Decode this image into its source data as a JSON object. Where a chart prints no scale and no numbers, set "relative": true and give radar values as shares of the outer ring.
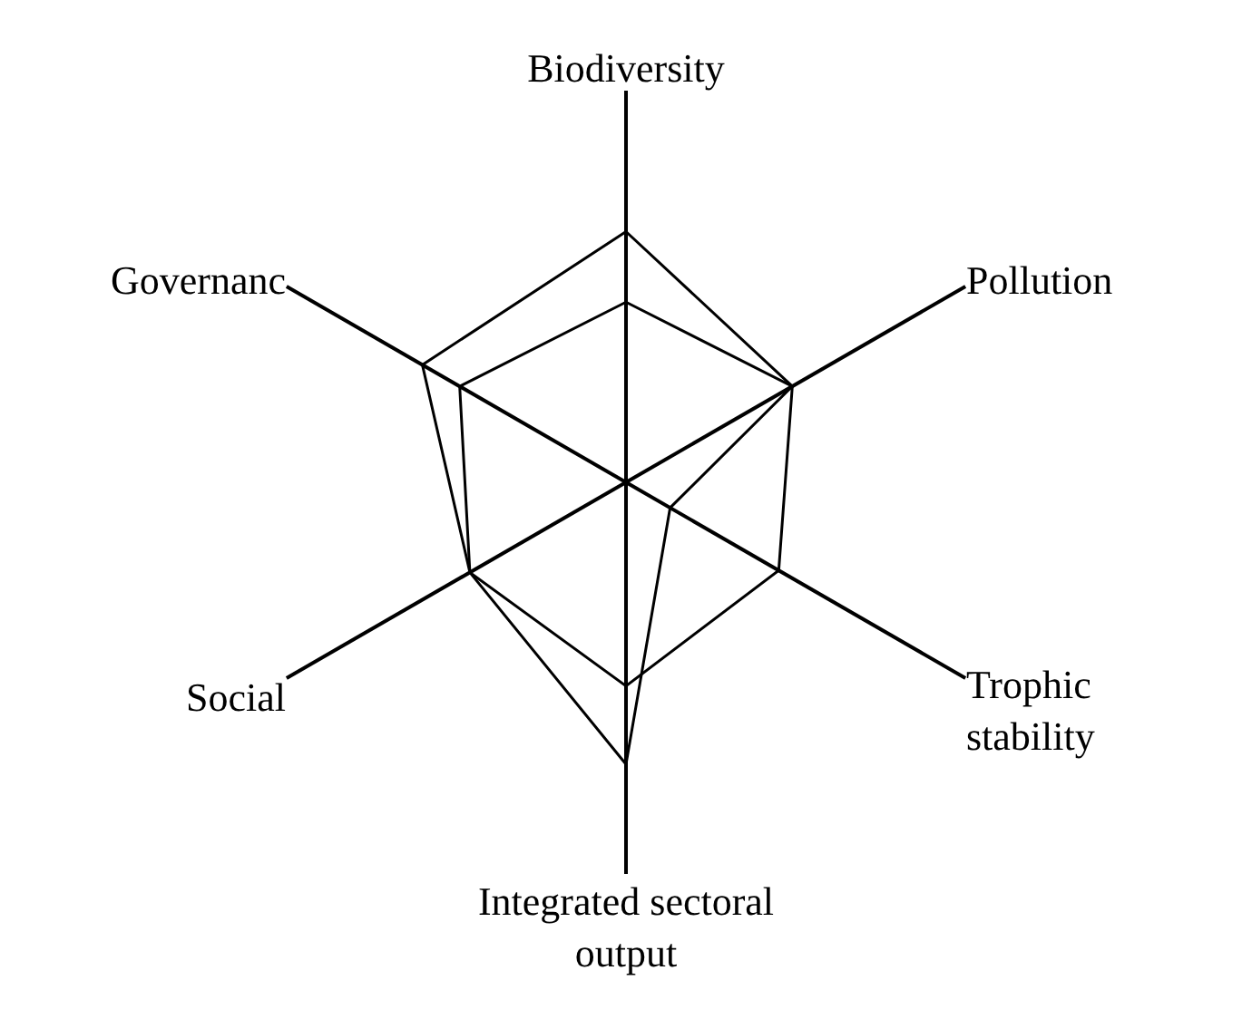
{
  "chart_data": {
    "type": "radar",
    "relative": true,
    "categories": [
      "Biodiversity",
      "Pollution",
      "Trophic\nstability",
      "Integrated sectoral\noutput",
      "Social",
      "Governanc"
    ],
    "series": [
      {
        "color": "#000000",
        "values": [
          0.46,
          0.49,
          0.45,
          0.52,
          0.46,
          0.49
        ]
      },
      {
        "color": "#000000",
        "values": [
          0.64,
          0.49,
          0.13,
          0.72,
          0.46,
          0.6
        ]
      }
    ],
    "marker": "none",
    "line_style": "solid",
    "grid": "x"
  }
}
